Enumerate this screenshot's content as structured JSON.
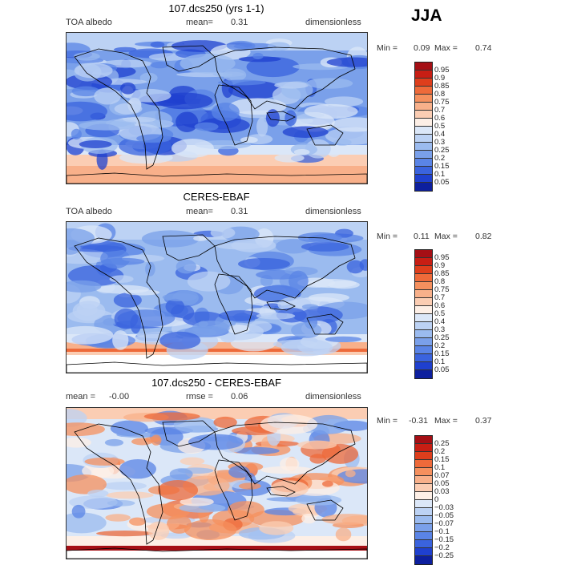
{
  "season": "JJA",
  "chart_data": [
    {
      "type": "heatmap",
      "title": "107.dcs250 (yrs 1-1)",
      "field": "TOA albedo",
      "mean_label": "mean=",
      "mean": "0.31",
      "units": "dimensionless",
      "min_label": "Min =",
      "min": "0.09",
      "max_label": "Max =",
      "max": "0.74",
      "levels": [
        "0.95",
        "0.9",
        "0.85",
        "0.8",
        "0.75",
        "0.7",
        "0.6",
        "0.5",
        "0.4",
        "0.3",
        "0.25",
        "0.2",
        "0.15",
        "0.1",
        "0.05"
      ],
      "colors": [
        "#a50f15",
        "#c81e14",
        "#de3e1c",
        "#ee6a3a",
        "#f5905e",
        "#f8b08a",
        "#fbcdb3",
        "#fdefe6",
        "#dbe7f8",
        "#bcd2f4",
        "#9bbbef",
        "#7aa0ea",
        "#5a84e6",
        "#3a63de",
        "#1f40cf",
        "#0d1f9e"
      ]
    },
    {
      "type": "heatmap",
      "title": "CERES-EBAF",
      "field": "TOA albedo",
      "mean_label": "mean=",
      "mean": "0.31",
      "units": "dimensionless",
      "min_label": "Min =",
      "min": "0.11",
      "max_label": "Max =",
      "max": "0.82",
      "levels": [
        "0.95",
        "0.9",
        "0.85",
        "0.8",
        "0.75",
        "0.7",
        "0.6",
        "0.5",
        "0.4",
        "0.3",
        "0.25",
        "0.2",
        "0.15",
        "0.1",
        "0.05"
      ],
      "colors": [
        "#a50f15",
        "#c81e14",
        "#de3e1c",
        "#ee6a3a",
        "#f5905e",
        "#f8b08a",
        "#fbcdb3",
        "#fdefe6",
        "#dbe7f8",
        "#bcd2f4",
        "#9bbbef",
        "#7aa0ea",
        "#5a84e6",
        "#3a63de",
        "#1f40cf",
        "#0d1f9e"
      ]
    },
    {
      "type": "heatmap",
      "title": "107.dcs250 - CERES-EBAF",
      "mean_label": "mean =",
      "mean": "-0.00",
      "rmse_label": "rmse =",
      "rmse": "0.06",
      "units": "dimensionless",
      "min_label": "Min =",
      "min": "-0.31",
      "max_label": "Max =",
      "max": "0.37",
      "levels": [
        "0.25",
        "0.2",
        "0.15",
        "0.1",
        "0.07",
        "0.05",
        "0.03",
        "0",
        "-0.03",
        "-0.05",
        "-0.07",
        "-0.1",
        "-0.15",
        "-0.2",
        "-0.25"
      ],
      "colors": [
        "#a50f15",
        "#c81e14",
        "#de3e1c",
        "#ee6a3a",
        "#f5905e",
        "#f8b08a",
        "#fbcdb3",
        "#fdefe6",
        "#dbe7f8",
        "#bcd2f4",
        "#9bbbef",
        "#7aa0ea",
        "#5a84e6",
        "#3a63de",
        "#1f40cf",
        "#0d1f9e"
      ]
    }
  ]
}
